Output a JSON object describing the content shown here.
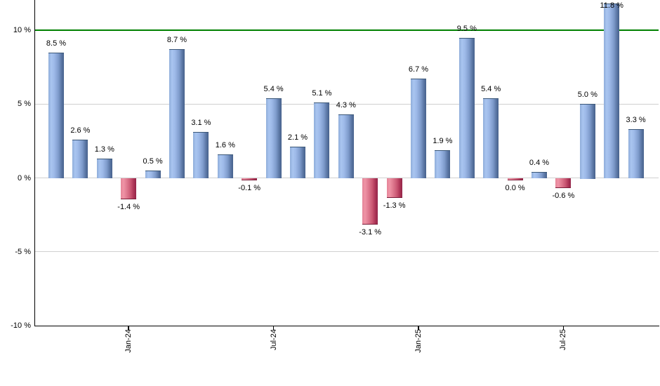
{
  "chart_data": {
    "type": "bar",
    "title": "",
    "xlabel": "",
    "ylabel": "",
    "ylim": [
      -10,
      12.1
    ],
    "grid": true,
    "legend": "none",
    "value_label_format": "percent with space, one decimal",
    "bars": [
      {
        "label": "8.5 %",
        "value": 8.5,
        "color": "blue"
      },
      {
        "label": "2.6 %",
        "value": 2.6,
        "color": "blue"
      },
      {
        "label": "1.3 %",
        "value": 1.3,
        "color": "blue"
      },
      {
        "label": "-1.4 %",
        "value": -1.4,
        "color": "red"
      },
      {
        "label": "0.5 %",
        "value": 0.5,
        "color": "blue"
      },
      {
        "label": "8.7 %",
        "value": 8.7,
        "color": "blue"
      },
      {
        "label": "3.1 %",
        "value": 3.1,
        "color": "blue"
      },
      {
        "label": "1.6 %",
        "value": 1.6,
        "color": "blue"
      },
      {
        "label": "-0.1 %",
        "value": -0.1,
        "color": "red"
      },
      {
        "label": "5.4 %",
        "value": 5.4,
        "color": "blue"
      },
      {
        "label": "2.1 %",
        "value": 2.1,
        "color": "blue"
      },
      {
        "label": "5.1 %",
        "value": 5.1,
        "color": "blue"
      },
      {
        "label": "4.3 %",
        "value": 4.3,
        "color": "blue"
      },
      {
        "label": "-3.1 %",
        "value": -3.1,
        "color": "red"
      },
      {
        "label": "-1.3 %",
        "value": -1.3,
        "color": "red"
      },
      {
        "label": "6.7 %",
        "value": 6.7,
        "color": "blue"
      },
      {
        "label": "1.9 %",
        "value": 1.9,
        "color": "blue"
      },
      {
        "label": "9.5 %",
        "value": 9.5,
        "color": "blue"
      },
      {
        "label": "5.4 %",
        "value": 5.4,
        "color": "blue"
      },
      {
        "label": "0.0 %",
        "value": 0.0,
        "color": "red"
      },
      {
        "label": "0.4 %",
        "value": 0.4,
        "color": "blue"
      },
      {
        "label": "-0.6 %",
        "value": -0.6,
        "color": "red"
      },
      {
        "label": "5.0 %",
        "value": 5.0,
        "color": "blue"
      },
      {
        "label": "11.8 %",
        "value": 11.8,
        "color": "blue"
      },
      {
        "label": "3.3 %",
        "value": 3.3,
        "color": "blue"
      }
    ],
    "y_ticks": [
      {
        "label": "10 %",
        "value": 10
      },
      {
        "label": "5 %",
        "value": 5
      },
      {
        "label": "0 %",
        "value": 0
      },
      {
        "label": "-5 %",
        "value": -5
      },
      {
        "label": "-10 %",
        "value": -10
      }
    ],
    "gridline_values": [
      5,
      0,
      -5
    ],
    "threshold_line": {
      "value": 10,
      "color": "#008000"
    },
    "x_ticks": [
      {
        "label": "Jan-24",
        "bar_index": 3
      },
      {
        "label": "Jul-24",
        "bar_index": 9
      },
      {
        "label": "Jan-25",
        "bar_index": 15
      },
      {
        "label": "Jul-25",
        "bar_index": 21
      }
    ],
    "colors": {
      "positive_bar_light": "#a9c5f0",
      "positive_bar_dark": "#47628c",
      "negative_bar_light": "#ef93a6",
      "negative_bar_dark": "#93254a",
      "threshold_line": "#008000",
      "gridline": "#d0d0d0",
      "axis": "#000000",
      "label_text": "#000000"
    }
  }
}
